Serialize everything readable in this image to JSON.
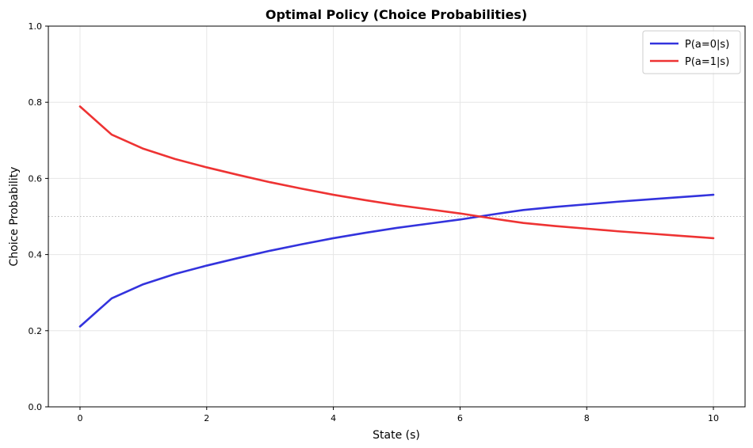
{
  "chart_data": {
    "type": "line",
    "title": "Optimal Policy (Choice Probabilities)",
    "xlabel": "State (s)",
    "ylabel": "Choice Probability",
    "xlim": [
      -0.5,
      10.5
    ],
    "ylim": [
      0.0,
      1.0
    ],
    "xticks": [
      0,
      2,
      4,
      6,
      8,
      10
    ],
    "yticks": [
      0.0,
      0.2,
      0.4,
      0.6,
      0.8,
      1.0
    ],
    "grid": true,
    "legend_position": "top-right",
    "reference_line": {
      "y": 0.5,
      "style": "dotted",
      "color": "#bbbbbb"
    },
    "x": [
      0,
      0.5,
      1,
      1.5,
      2,
      2.5,
      3,
      3.5,
      4,
      4.5,
      5,
      5.5,
      6,
      6.5,
      7,
      7.5,
      8,
      8.5,
      9,
      9.5,
      10
    ],
    "series": [
      {
        "name": "P(a=0|s)",
        "color": "#3333dd",
        "values": [
          0.211,
          0.285,
          0.322,
          0.349,
          0.371,
          0.391,
          0.41,
          0.427,
          0.443,
          0.457,
          0.47,
          0.481,
          0.492,
          0.505,
          0.517,
          0.525,
          0.532,
          0.539,
          0.545,
          0.551,
          0.557
        ]
      },
      {
        "name": "P(a=1|s)",
        "color": "#ee3333",
        "values": [
          0.789,
          0.715,
          0.678,
          0.651,
          0.629,
          0.609,
          0.59,
          0.573,
          0.557,
          0.543,
          0.53,
          0.519,
          0.508,
          0.495,
          0.483,
          0.475,
          0.468,
          0.461,
          0.455,
          0.449,
          0.443
        ]
      }
    ]
  }
}
